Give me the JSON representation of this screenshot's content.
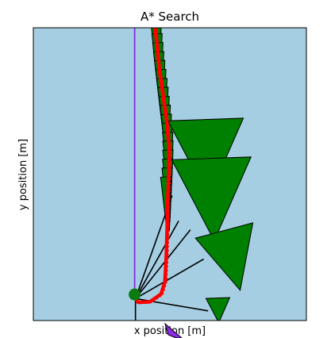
{
  "chart_data": {
    "type": "line",
    "title": "A* Search",
    "xlabel": "x position [m]",
    "ylabel": "y position [m]",
    "xlim": [
      0,
      100
    ],
    "ylim": [
      0,
      100
    ],
    "grid": false,
    "legend": "none",
    "background_color": "#a6cee3",
    "series": [
      {
        "kind": "path",
        "color": "#ff0000",
        "points": [
          [
            44.6,
            100
          ],
          [
            45.1,
            95.8
          ],
          [
            46.0,
            86.7
          ],
          [
            47.4,
            77.5
          ],
          [
            48.8,
            68.3
          ],
          [
            49.7,
            59.2
          ],
          [
            49.6,
            50.0
          ],
          [
            49.2,
            40.8
          ],
          [
            49.0,
            31.7
          ],
          [
            48.7,
            22.5
          ],
          [
            48.2,
            13.3
          ],
          [
            46.8,
            9.1
          ],
          [
            42.7,
            6.4
          ],
          [
            38.4,
            6.2
          ],
          [
            37.4,
            7.6
          ]
        ]
      },
      {
        "kind": "reference-line",
        "color": "#8a2be2",
        "points": [
          [
            37.1,
            100
          ],
          [
            37.1,
            8.9
          ]
        ]
      }
    ],
    "start_marker": {
      "color": "#0b7a10",
      "x": 37.1,
      "y": 8.9
    },
    "tree_edges": [
      [
        [
          37.4,
          7.5
        ],
        [
          50.8,
          42.7
        ]
      ],
      [
        [
          37.4,
          7.5
        ],
        [
          53.2,
          34.0
        ]
      ],
      [
        [
          37.4,
          7.5
        ],
        [
          57.5,
          31.0
        ]
      ],
      [
        [
          37.4,
          7.5
        ],
        [
          62.4,
          21.0
        ]
      ],
      [
        [
          37.4,
          7.5
        ],
        [
          64.0,
          3.3
        ]
      ],
      [
        [
          37.4,
          7.5
        ],
        [
          37.4,
          0.0
        ]
      ]
    ],
    "robot_poses": {
      "color": "#008000",
      "trail": [
        [
          44.9,
          98.9
        ],
        [
          45.1,
          95.8
        ],
        [
          45.3,
          92.8
        ],
        [
          45.6,
          89.7
        ],
        [
          45.9,
          86.7
        ],
        [
          46.2,
          83.6
        ],
        [
          46.6,
          80.6
        ],
        [
          47.0,
          77.5
        ],
        [
          47.4,
          74.4
        ],
        [
          47.8,
          71.4
        ],
        [
          48.2,
          68.3
        ],
        [
          48.6,
          65.3
        ],
        [
          49.0,
          62.2
        ],
        [
          49.3,
          59.2
        ],
        [
          49.5,
          56.1
        ],
        [
          49.6,
          53.1
        ],
        [
          49.6,
          50.0
        ],
        [
          49.5,
          46.9
        ],
        [
          49.3,
          43.9
        ],
        [
          48.8,
          40.8
        ]
      ],
      "big": [
        [
          63.5,
          58.5,
          38.0
        ],
        [
          65.6,
          44.7,
          40.0
        ],
        [
          72.1,
          23.0,
          30.0
        ],
        [
          67.7,
          4.5,
          12.0
        ]
      ]
    },
    "cursor_icon": "arrow-cursor-icon",
    "cursor_color": "#8a2be2"
  }
}
